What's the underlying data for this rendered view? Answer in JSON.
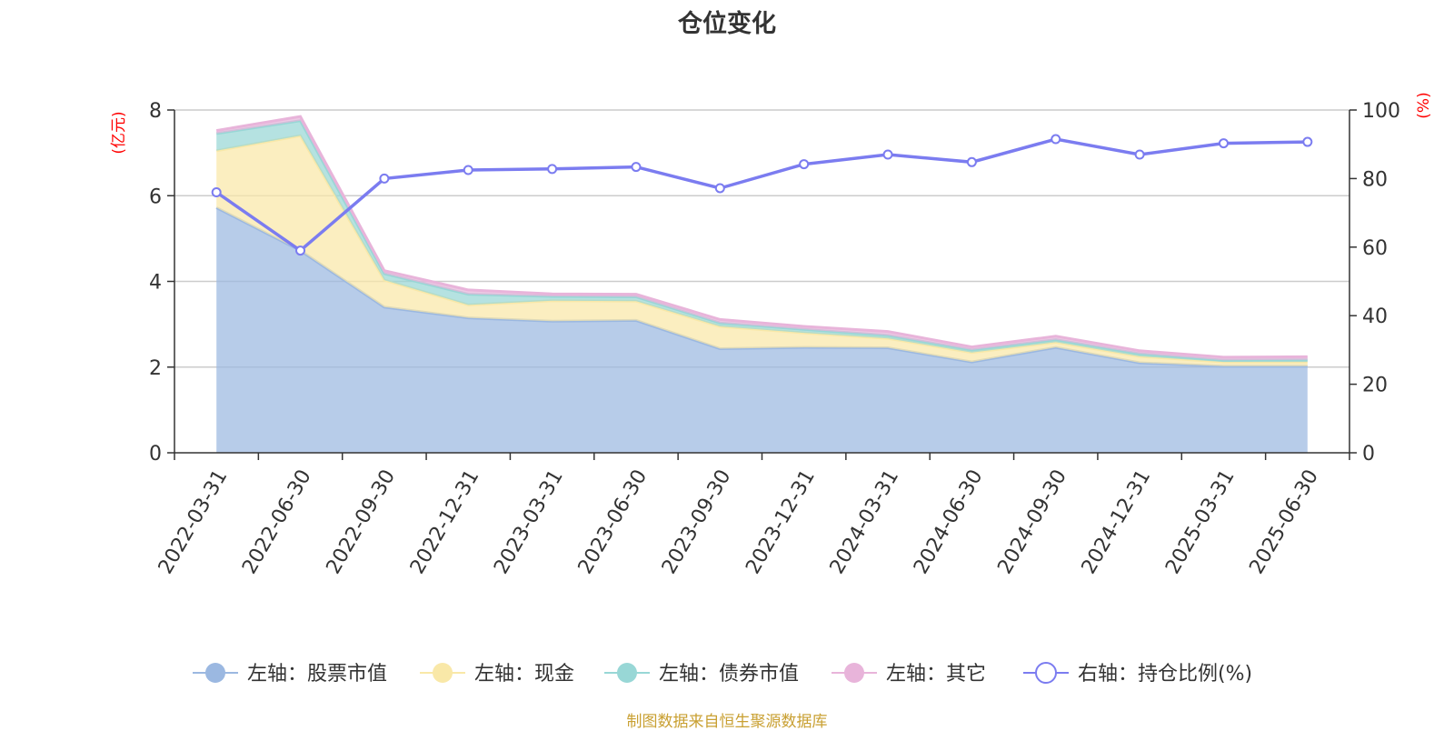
{
  "chart_data": {
    "type": "area",
    "title": "仓位变化",
    "source": "制图数据来自恒生聚源数据库",
    "x": [
      "2022-03-31",
      "2022-06-30",
      "2022-09-30",
      "2022-12-31",
      "2023-03-31",
      "2023-06-30",
      "2023-09-30",
      "2023-12-31",
      "2024-03-31",
      "2024-06-30",
      "2024-09-30",
      "2024-12-31",
      "2025-03-31",
      "2025-06-30"
    ],
    "left_axis": {
      "unit": "(亿元)",
      "ylim": [
        0,
        8
      ],
      "ticks": [
        0,
        2,
        4,
        6,
        8
      ]
    },
    "right_axis": {
      "unit": "(%)",
      "ylim": [
        0,
        100
      ],
      "ticks": [
        0,
        20,
        40,
        60,
        80,
        100
      ]
    },
    "grid": true,
    "legend_position": "bottom",
    "stacked_series": [
      {
        "name": "左轴：股票市值",
        "color": "#9bb8e1",
        "values": [
          5.72,
          4.72,
          3.4,
          3.15,
          3.07,
          3.09,
          2.43,
          2.46,
          2.45,
          2.12,
          2.46,
          2.1,
          2.02,
          2.02
        ]
      },
      {
        "name": "左轴：现金",
        "color": "#f9e8a8",
        "values": [
          1.33,
          2.68,
          0.63,
          0.3,
          0.48,
          0.45,
          0.52,
          0.34,
          0.22,
          0.22,
          0.12,
          0.15,
          0.1,
          0.1
        ]
      },
      {
        "name": "左轴：债券市值",
        "color": "#98d7d6",
        "values": [
          0.4,
          0.35,
          0.15,
          0.25,
          0.1,
          0.1,
          0.08,
          0.08,
          0.07,
          0.06,
          0.06,
          0.06,
          0.04,
          0.05
        ]
      },
      {
        "name": "左轴：其它",
        "color": "#e8b4da",
        "values": [
          0.07,
          0.1,
          0.07,
          0.1,
          0.06,
          0.06,
          0.08,
          0.07,
          0.09,
          0.07,
          0.08,
          0.07,
          0.07,
          0.07
        ]
      }
    ],
    "line_series": {
      "name": "右轴：持仓比例(%)",
      "color": "#7b7cf0",
      "axis": "right",
      "values": [
        76.0,
        59.0,
        80.0,
        82.5,
        82.8,
        83.4,
        77.2,
        84.2,
        87.0,
        84.8,
        91.5,
        87.0,
        90.3,
        90.7
      ]
    }
  }
}
